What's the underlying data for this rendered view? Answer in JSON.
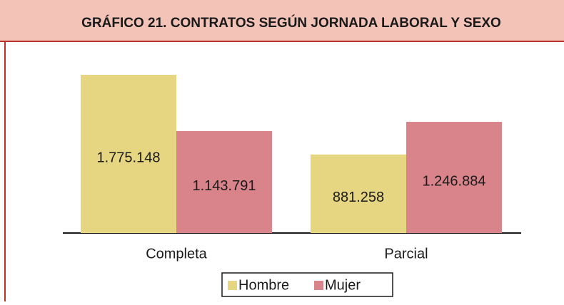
{
  "chart_data": {
    "type": "bar",
    "title": "GRÁFICO 21. CONTRATOS SEGÚN JORNADA LABORAL Y SEXO",
    "categories": [
      "Completa",
      "Parcial"
    ],
    "series": [
      {
        "name": "Hombre",
        "color": "#e6d681",
        "values": [
          1775148,
          881258
        ],
        "value_labels": [
          "1.775.148",
          "881.258"
        ]
      },
      {
        "name": "Mujer",
        "color": "#d9838b",
        "values": [
          1143791,
          1246884
        ],
        "value_labels": [
          "1.143.791",
          "1.246.884"
        ]
      }
    ],
    "legend": "bottom"
  }
}
